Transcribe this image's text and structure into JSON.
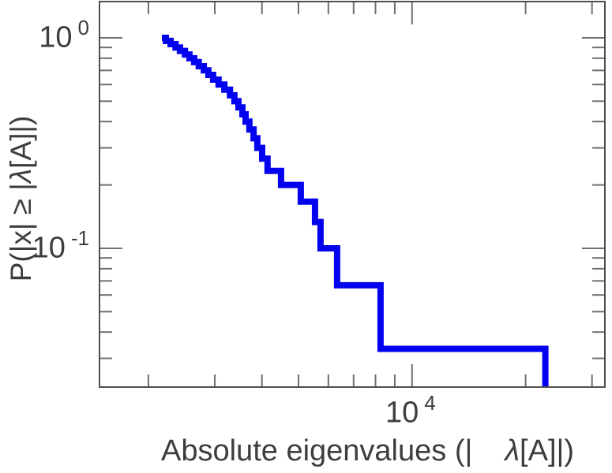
{
  "figure": {
    "background": "#ffffff",
    "frame_color": "#4f4f4f",
    "tick_color": "#6f6f6f",
    "text_color": "#3d3d3d"
  },
  "labels": {
    "x_pre": "Absolute eigenvalues (|",
    "x_lambda": "λ",
    "x_post": "[A]|)",
    "y_pre": "P(|x| ≥ |",
    "y_lambda": "λ",
    "y_post": "[A]|)"
  },
  "ticks": {
    "y_major_0": {
      "base": "10",
      "exp": "0"
    },
    "y_major_1": {
      "base": "10",
      "exp": "-1"
    },
    "x_major_0": {
      "base": "10",
      "exp": "4"
    }
  },
  "chart_data": {
    "type": "line",
    "subtype": "step-post-ccdf",
    "title": "",
    "xlabel": "Absolute eigenvalues (|λ[A]|)",
    "ylabel": "P(|x| ≥ |λ[A]|)",
    "x_scale": "log",
    "y_scale": "log",
    "grid": false,
    "legend": "none",
    "xlim": [
      1491,
      32300
    ],
    "ylim": [
      0.0221,
      1.474
    ],
    "x_major_ticks": [
      10000
    ],
    "y_major_ticks": [
      1,
      0.1
    ],
    "line_color": "#0202ee",
    "line_width": 8,
    "n_points": 30,
    "eigenvalues": [
      2225,
      2290,
      2360,
      2425,
      2500,
      2570,
      2645,
      2720,
      2805,
      2885,
      2970,
      3070,
      3180,
      3290,
      3380,
      3465,
      3550,
      3620,
      3705,
      3800,
      3890,
      4005,
      4140,
      4495,
      5070,
      5530,
      5720,
      6330,
      8250,
      22570
    ],
    "ccdf": [
      1.0,
      0.9667,
      0.9333,
      0.9,
      0.8667,
      0.8333,
      0.8,
      0.7667,
      0.7333,
      0.7,
      0.6667,
      0.6333,
      0.6,
      0.5667,
      0.5333,
      0.5,
      0.4667,
      0.4333,
      0.4,
      0.3667,
      0.3333,
      0.3,
      0.2667,
      0.2333,
      0.2,
      0.1667,
      0.1333,
      0.1,
      0.0667,
      0.0333
    ]
  }
}
